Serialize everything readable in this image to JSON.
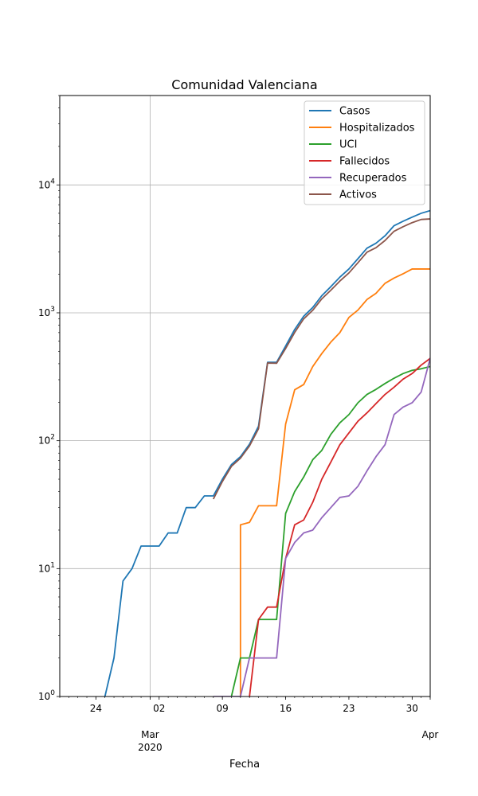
{
  "chart_data": {
    "type": "line",
    "title": "Comunidad Valenciana",
    "xlabel": "Fecha",
    "ylabel": "",
    "yscale": "log",
    "ylim": [
      1,
      50000
    ],
    "xlim": [
      "2020-02-20",
      "2020-04-01"
    ],
    "grid": true,
    "legend_position": "top-right",
    "x_ticks": [
      {
        "date": "2020-02-24",
        "label": "24"
      },
      {
        "date": "2020-03-02",
        "label": "02"
      },
      {
        "date": "2020-03-09",
        "label": "09"
      },
      {
        "date": "2020-03-16",
        "label": "16"
      },
      {
        "date": "2020-03-23",
        "label": "23"
      },
      {
        "date": "2020-03-30",
        "label": "30"
      }
    ],
    "x_major_labels": [
      {
        "date": "2020-03-01",
        "lines": [
          "Mar",
          "2020"
        ]
      },
      {
        "date": "2020-04-01",
        "lines": [
          "Apr"
        ]
      }
    ],
    "y_ticks": [
      {
        "value": 1,
        "base": "10",
        "exp": "0"
      },
      {
        "value": 10,
        "base": "10",
        "exp": "1"
      },
      {
        "value": 100,
        "base": "10",
        "exp": "2"
      },
      {
        "value": 1000,
        "base": "10",
        "exp": "3"
      },
      {
        "value": 10000,
        "base": "10",
        "exp": "4"
      }
    ],
    "series": [
      {
        "name": "Casos",
        "color": "#1f77b4",
        "points": [
          [
            "2020-02-25",
            1
          ],
          [
            "2020-02-26",
            2
          ],
          [
            "2020-02-27",
            8
          ],
          [
            "2020-02-28",
            10
          ],
          [
            "2020-02-29",
            15
          ],
          [
            "2020-03-01",
            15
          ],
          [
            "2020-03-02",
            15
          ],
          [
            "2020-03-03",
            19
          ],
          [
            "2020-03-04",
            19
          ],
          [
            "2020-03-05",
            30
          ],
          [
            "2020-03-06",
            30
          ],
          [
            "2020-03-07",
            37
          ],
          [
            "2020-03-08",
            37
          ],
          [
            "2020-03-09",
            50
          ],
          [
            "2020-03-10",
            65
          ],
          [
            "2020-03-11",
            75
          ],
          [
            "2020-03-12",
            94
          ],
          [
            "2020-03-13",
            130
          ],
          [
            "2020-03-14",
            410
          ],
          [
            "2020-03-15",
            410
          ],
          [
            "2020-03-16",
            550
          ],
          [
            "2020-03-17",
            740
          ],
          [
            "2020-03-18",
            940
          ],
          [
            "2020-03-19",
            1100
          ],
          [
            "2020-03-20",
            1360
          ],
          [
            "2020-03-21",
            1600
          ],
          [
            "2020-03-22",
            1900
          ],
          [
            "2020-03-23",
            2200
          ],
          [
            "2020-03-24",
            2650
          ],
          [
            "2020-03-25",
            3200
          ],
          [
            "2020-03-26",
            3500
          ],
          [
            "2020-03-27",
            4000
          ],
          [
            "2020-03-28",
            4800
          ],
          [
            "2020-03-29",
            5200
          ],
          [
            "2020-03-30",
            5600
          ],
          [
            "2020-03-31",
            6000
          ],
          [
            "2020-04-01",
            6300
          ]
        ]
      },
      {
        "name": "Hospitalizados",
        "color": "#ff7f0e",
        "points": [
          [
            "2020-03-11",
            0.1
          ],
          [
            "2020-03-11",
            22
          ],
          [
            "2020-03-12",
            23
          ],
          [
            "2020-03-13",
            31
          ],
          [
            "2020-03-14",
            31
          ],
          [
            "2020-03-15",
            31
          ],
          [
            "2020-03-16",
            135
          ],
          [
            "2020-03-17",
            250
          ],
          [
            "2020-03-18",
            275
          ],
          [
            "2020-03-19",
            380
          ],
          [
            "2020-03-20",
            480
          ],
          [
            "2020-03-21",
            590
          ],
          [
            "2020-03-22",
            700
          ],
          [
            "2020-03-23",
            920
          ],
          [
            "2020-03-24",
            1050
          ],
          [
            "2020-03-25",
            1270
          ],
          [
            "2020-03-26",
            1420
          ],
          [
            "2020-03-27",
            1700
          ],
          [
            "2020-03-28",
            1870
          ],
          [
            "2020-03-29",
            2020
          ],
          [
            "2020-03-30",
            2200
          ],
          [
            "2020-03-31",
            2200
          ],
          [
            "2020-04-01",
            2200
          ]
        ]
      },
      {
        "name": "UCI",
        "color": "#2ca02c",
        "points": [
          [
            "2020-03-10",
            1
          ],
          [
            "2020-03-11",
            2
          ],
          [
            "2020-03-12",
            2
          ],
          [
            "2020-03-13",
            4
          ],
          [
            "2020-03-14",
            4
          ],
          [
            "2020-03-15",
            4
          ],
          [
            "2020-03-16",
            27
          ],
          [
            "2020-03-17",
            40
          ],
          [
            "2020-03-18",
            52
          ],
          [
            "2020-03-19",
            71
          ],
          [
            "2020-03-20",
            84
          ],
          [
            "2020-03-21",
            112
          ],
          [
            "2020-03-22",
            138
          ],
          [
            "2020-03-23",
            160
          ],
          [
            "2020-03-24",
            198
          ],
          [
            "2020-03-25",
            230
          ],
          [
            "2020-03-26",
            252
          ],
          [
            "2020-03-27",
            280
          ],
          [
            "2020-03-28",
            308
          ],
          [
            "2020-03-29",
            335
          ],
          [
            "2020-03-30",
            355
          ],
          [
            "2020-03-31",
            365
          ],
          [
            "2020-04-01",
            380
          ]
        ]
      },
      {
        "name": "Fallecidos",
        "color": "#d62728",
        "points": [
          [
            "2020-03-12",
            1
          ],
          [
            "2020-03-13",
            4
          ],
          [
            "2020-03-14",
            5
          ],
          [
            "2020-03-15",
            5
          ],
          [
            "2020-03-16",
            12
          ],
          [
            "2020-03-17",
            22
          ],
          [
            "2020-03-18",
            24
          ],
          [
            "2020-03-19",
            33
          ],
          [
            "2020-03-20",
            50
          ],
          [
            "2020-03-21",
            68
          ],
          [
            "2020-03-22",
            93
          ],
          [
            "2020-03-23",
            115
          ],
          [
            "2020-03-24",
            142
          ],
          [
            "2020-03-25",
            165
          ],
          [
            "2020-03-26",
            195
          ],
          [
            "2020-03-27",
            230
          ],
          [
            "2020-03-28",
            262
          ],
          [
            "2020-03-29",
            303
          ],
          [
            "2020-03-30",
            335
          ],
          [
            "2020-03-31",
            390
          ],
          [
            "2020-04-01",
            440
          ]
        ]
      },
      {
        "name": "Recuperados",
        "color": "#9467bd",
        "points": [
          [
            "2020-03-08",
            1
          ],
          [
            "2020-03-11",
            1
          ],
          [
            "2020-03-12",
            2
          ],
          [
            "2020-03-13",
            2
          ],
          [
            "2020-03-14",
            2
          ],
          [
            "2020-03-15",
            2
          ],
          [
            "2020-03-16",
            12
          ],
          [
            "2020-03-17",
            16
          ],
          [
            "2020-03-18",
            19
          ],
          [
            "2020-03-19",
            20
          ],
          [
            "2020-03-20",
            25
          ],
          [
            "2020-03-21",
            30
          ],
          [
            "2020-03-22",
            36
          ],
          [
            "2020-03-23",
            37
          ],
          [
            "2020-03-24",
            44
          ],
          [
            "2020-03-25",
            58
          ],
          [
            "2020-03-26",
            75
          ],
          [
            "2020-03-27",
            93
          ],
          [
            "2020-03-28",
            160
          ],
          [
            "2020-03-29",
            183
          ],
          [
            "2020-03-30",
            198
          ],
          [
            "2020-03-31",
            240
          ],
          [
            "2020-04-01",
            440
          ]
        ]
      },
      {
        "name": "Activos",
        "color": "#8c564b",
        "points": [
          [
            "2020-03-08",
            35
          ],
          [
            "2020-03-09",
            48
          ],
          [
            "2020-03-10",
            63
          ],
          [
            "2020-03-11",
            73
          ],
          [
            "2020-03-12",
            91
          ],
          [
            "2020-03-13",
            124
          ],
          [
            "2020-03-14",
            405
          ],
          [
            "2020-03-15",
            403
          ],
          [
            "2020-03-16",
            526
          ],
          [
            "2020-03-17",
            702
          ],
          [
            "2020-03-18",
            897
          ],
          [
            "2020-03-19",
            1047
          ],
          [
            "2020-03-20",
            1285
          ],
          [
            "2020-03-21",
            1502
          ],
          [
            "2020-03-22",
            1771
          ],
          [
            "2020-03-23",
            2048
          ],
          [
            "2020-03-24",
            2464
          ],
          [
            "2020-03-25",
            2977
          ],
          [
            "2020-03-26",
            3230
          ],
          [
            "2020-03-27",
            3677
          ],
          [
            "2020-03-28",
            4340
          ],
          [
            "2020-03-29",
            4714
          ],
          [
            "2020-03-30",
            5067
          ],
          [
            "2020-03-31",
            5370
          ],
          [
            "2020-04-01",
            5420
          ]
        ]
      }
    ]
  }
}
